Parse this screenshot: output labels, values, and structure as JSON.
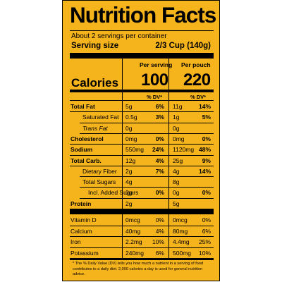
{
  "title": "Nutrition Facts",
  "servings_per_container": "About 2 servings per container",
  "serving_size_label": "Serving size",
  "serving_size_value": "2/3 Cup (140g)",
  "columns": {
    "per_serving": "Per serving",
    "per_pouch": "Per pouch"
  },
  "calories": {
    "label": "Calories",
    "per_serving": "100",
    "per_pouch": "220"
  },
  "dv_header": "% DV*",
  "rows": [
    {
      "label": "Total Fat",
      "bold": true,
      "s_amt": "5g",
      "s_dv": "6%",
      "p_amt": "11g",
      "p_dv": "14%"
    },
    {
      "label": "Saturated Fat",
      "bold": false,
      "s_amt": "0.5g",
      "s_dv": "3%",
      "p_amt": "1g",
      "p_dv": "5%"
    },
    {
      "label": "Trans Fat",
      "bold": false,
      "s_amt": "0g",
      "s_dv": "",
      "p_amt": "0g",
      "p_dv": ""
    },
    {
      "label": "Cholesterol",
      "bold": true,
      "s_amt": "0mg",
      "s_dv": "0%",
      "p_amt": "0mg",
      "p_dv": "0%"
    },
    {
      "label": "Sodium",
      "bold": true,
      "s_amt": "550mg",
      "s_dv": "24%",
      "p_amt": "1120mg",
      "p_dv": "48%"
    },
    {
      "label": "Total Carb.",
      "bold": true,
      "s_amt": "12g",
      "s_dv": "4%",
      "p_amt": "25g",
      "p_dv": "9%"
    },
    {
      "label": "Dietary Fiber",
      "bold": false,
      "s_amt": "2g",
      "s_dv": "7%",
      "p_amt": "4g",
      "p_dv": "14%"
    },
    {
      "label": "Total Sugars",
      "bold": false,
      "s_amt": "4g",
      "s_dv": "",
      "p_amt": "8g",
      "p_dv": ""
    },
    {
      "label": "Incl. Added Sugars",
      "bold": false,
      "s_amt": "0g",
      "s_dv": "0%",
      "p_amt": "0g",
      "p_dv": "0%"
    },
    {
      "label": "Protein",
      "bold": true,
      "s_amt": "2g",
      "s_dv": "",
      "p_amt": "5g",
      "p_dv": ""
    }
  ],
  "vitamins": [
    {
      "label": "Vitamin D",
      "s_amt": "0mcg",
      "s_dv": "0%",
      "p_amt": "0mcg",
      "p_dv": "0%"
    },
    {
      "label": "Calcium",
      "s_amt": "40mg",
      "s_dv": "4%",
      "p_amt": "80mg",
      "p_dv": "6%"
    },
    {
      "label": "Iron",
      "s_amt": "2.2mg",
      "s_dv": "10%",
      "p_amt": "4.4mg",
      "p_dv": "25%"
    },
    {
      "label": "Potassium",
      "s_amt": "240mg",
      "s_dv": "6%",
      "p_amt": "500mg",
      "p_dv": "10%"
    }
  ],
  "footnote": "* The % Daily Value (DV) tells you how much a nutrient in a serving of food contributes to a daily diet. 2,000 calories a day is used for general nutrition advice.",
  "colors": {
    "label_background": "#f5b31c",
    "ink": "#000000"
  }
}
